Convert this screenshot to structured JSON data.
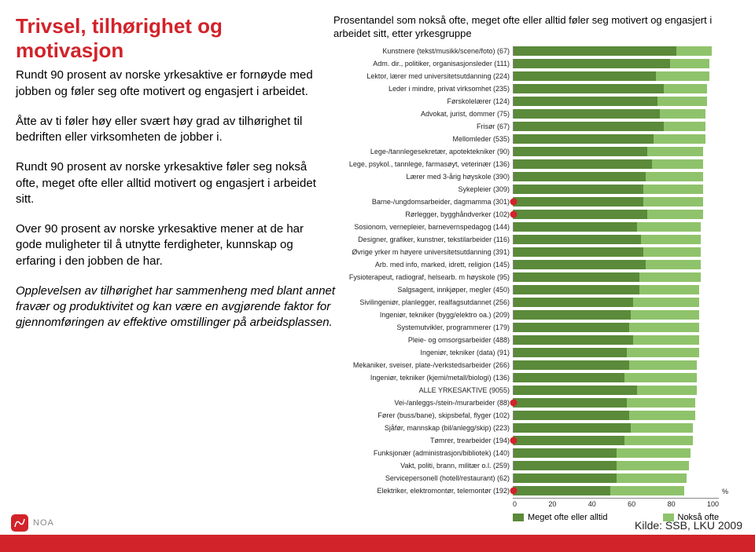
{
  "title": "Trivsel, tilhørighet og motivasjon",
  "intro": "Rundt 90 prosent av norske yrkesaktive er fornøyde med jobben og føler seg ofte motivert og engasjert i arbeidet.",
  "p1": "Åtte av ti føler høy eller svært høy grad av tilhørighet til bedriften eller virksomheten de jobber i.",
  "p2": "Rundt 90 prosent av norske yrkesaktive føler seg nokså ofte, meget ofte eller alltid motivert og engasjert i arbeidet sitt.",
  "p3": "Over 90 prosent av norske yrkesaktive mener at de har gode muligheter til å utnytte ferdigheter, kunnskap og erfaring i den jobben de har.",
  "footnote": "Opplevelsen av tilhørighet har sammenheng med blant annet fravær og produktivitet og kan være en avgjørende faktor for gjennomføringen av effektive omstillinger på arbeidsplassen.",
  "chart_caption": "Prosentandel som nokså ofte, meget ofte eller alltid føler seg motivert og engasjert i arbeidet sitt, etter yrkesgruppe",
  "colors": {
    "meget": "#5a8a3a",
    "noksa": "#8fc36b",
    "marker": "#d2232a",
    "title": "#d2232a",
    "bar": "#d2232a"
  },
  "chart": {
    "xmax": 100,
    "ticks": [
      "0",
      "20",
      "40",
      "60",
      "80",
      "100"
    ],
    "pct_label": "%",
    "legend1": "Meget ofte eller alltid",
    "legend2": "Nokså ofte",
    "rows": [
      {
        "label": "Kunstnere (tekst/musikk/scene/foto) (67)",
        "m": 79,
        "n": 17,
        "mk": false
      },
      {
        "label": "Adm. dir., politiker, organisasjonsleder (111)",
        "m": 76,
        "n": 19,
        "mk": false
      },
      {
        "label": "Lektor, lærer med universitetsutdanning (224)",
        "m": 69,
        "n": 26,
        "mk": false
      },
      {
        "label": "Leder i mindre, privat virksomhet (235)",
        "m": 73,
        "n": 21,
        "mk": false
      },
      {
        "label": "Førskolelærer (124)",
        "m": 70,
        "n": 24,
        "mk": false
      },
      {
        "label": "Advokat, jurist, dommer (75)",
        "m": 71,
        "n": 22,
        "mk": false
      },
      {
        "label": "Frisør (67)",
        "m": 73,
        "n": 20,
        "mk": false
      },
      {
        "label": "Mellomleder (535)",
        "m": 68,
        "n": 25,
        "mk": false
      },
      {
        "label": "Lege-/tannlegesekretær, apotektekniker (90)",
        "m": 65,
        "n": 27,
        "mk": false
      },
      {
        "label": "Lege, psykol., tannlege, farmasøyt, veterinær (136)",
        "m": 67,
        "n": 25,
        "mk": false
      },
      {
        "label": "Lærer med 3-årig høyskole (390)",
        "m": 64,
        "n": 28,
        "mk": false
      },
      {
        "label": "Sykepleier (309)",
        "m": 63,
        "n": 29,
        "mk": false
      },
      {
        "label": "Barne-/ungdomsarbeider, dagmamma (301)",
        "m": 63,
        "n": 29,
        "mk": true
      },
      {
        "label": "Rørlegger, bygghåndverker (102)",
        "m": 65,
        "n": 27,
        "mk": true
      },
      {
        "label": "Sosionom, vernepleier, barnevernspedagog (144)",
        "m": 60,
        "n": 31,
        "mk": false
      },
      {
        "label": "Designer, grafiker, kunstner, tekstilarbeider (116)",
        "m": 62,
        "n": 29,
        "mk": false
      },
      {
        "label": "Øvrige yrker m høyere universitetsutdanning (391)",
        "m": 63,
        "n": 28,
        "mk": false
      },
      {
        "label": "Arb. med info, marked, idrett, religion (145)",
        "m": 64,
        "n": 27,
        "mk": false
      },
      {
        "label": "Fysioterapeut, radiograf, helsearb. m høyskole (95)",
        "m": 61,
        "n": 30,
        "mk": false
      },
      {
        "label": "Salgsagent, innkjøper, megler (450)",
        "m": 61,
        "n": 29,
        "mk": false
      },
      {
        "label": "Sivilingeniør, planlegger, realfagsutdannet (256)",
        "m": 58,
        "n": 32,
        "mk": false
      },
      {
        "label": "Ingeniør, tekniker (bygg/elektro oa.) (209)",
        "m": 57,
        "n": 33,
        "mk": false
      },
      {
        "label": "Systemutvikler, programmerer (179)",
        "m": 56,
        "n": 34,
        "mk": false
      },
      {
        "label": "Pleie- og omsorgsarbeider (488)",
        "m": 58,
        "n": 32,
        "mk": false
      },
      {
        "label": "Ingeniør, tekniker  (data) (91)",
        "m": 55,
        "n": 35,
        "mk": false
      },
      {
        "label": "Mekaniker, sveiser, plate-/verkstedsarbeider (266)",
        "m": 56,
        "n": 33,
        "mk": false
      },
      {
        "label": "Ingeniør, tekniker (kjemi/metall/biologi) (136)",
        "m": 54,
        "n": 35,
        "mk": false
      },
      {
        "label": "ALLE YRKESAKTIVE (9055)",
        "m": 60,
        "n": 29,
        "mk": false
      },
      {
        "label": "Vei-/anleggs-/stein-/murarbeider (88)",
        "m": 55,
        "n": 33,
        "mk": true
      },
      {
        "label": "Fører (buss/bane), skipsbefal, flyger (102)",
        "m": 56,
        "n": 32,
        "mk": false
      },
      {
        "label": "Sjåfør, mannskap  (bil/anlegg/skip) (223)",
        "m": 57,
        "n": 30,
        "mk": false
      },
      {
        "label": "Tømrer, trearbeider (194)",
        "m": 54,
        "n": 33,
        "mk": true
      },
      {
        "label": "Funksjonær  (administrasjon/bibliotek) (140)",
        "m": 50,
        "n": 36,
        "mk": false
      },
      {
        "label": "Vakt, politi, brann, militær o.l. (259)",
        "m": 50,
        "n": 35,
        "mk": false
      },
      {
        "label": "Servicepersonell  (hotell/restaurant) (62)",
        "m": 50,
        "n": 34,
        "mk": false
      },
      {
        "label": "Elektriker, elektromontør, telemontør (192)",
        "m": 47,
        "n": 36,
        "mk": true
      }
    ]
  },
  "source": "Kilde: SSB, LKU 2009",
  "logo_text": "NOA"
}
